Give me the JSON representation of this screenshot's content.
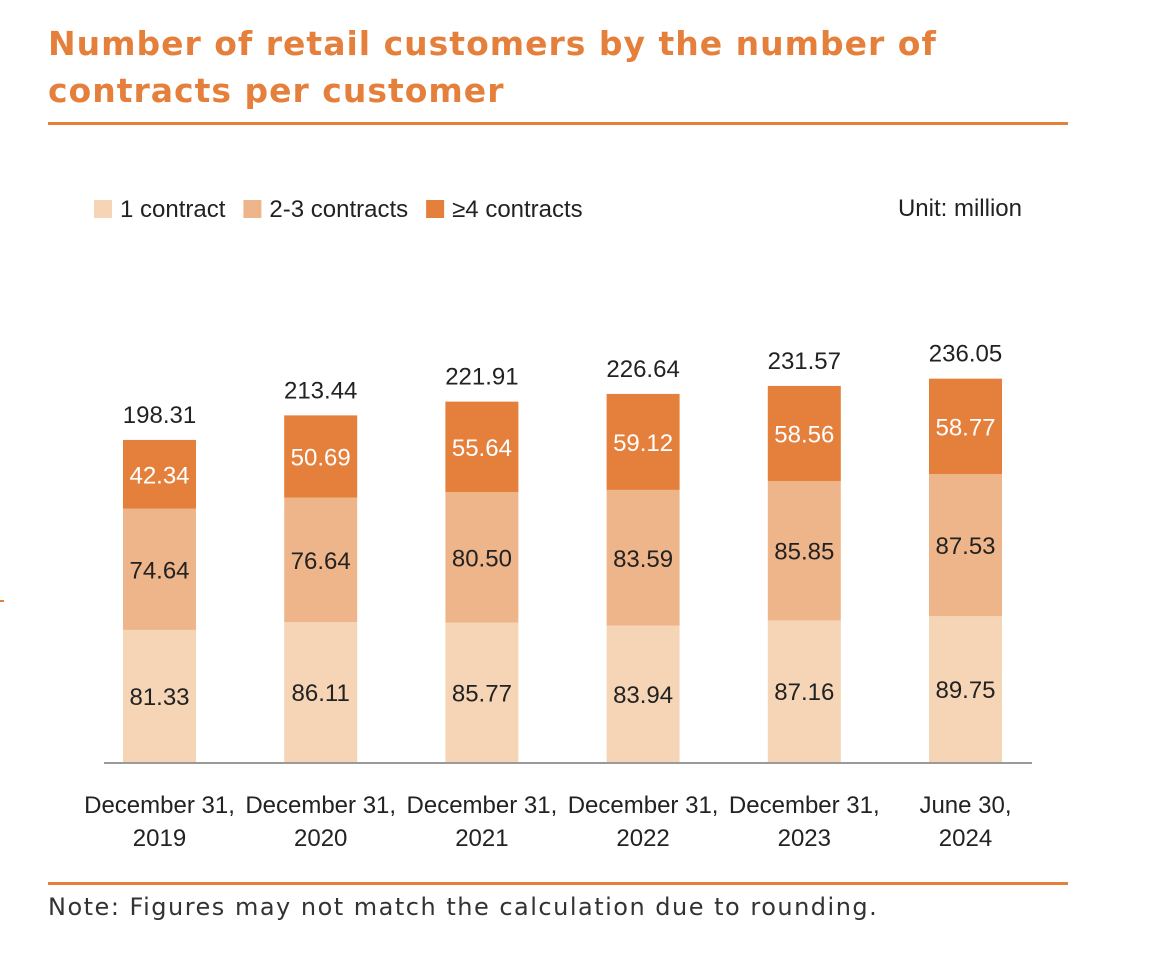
{
  "title": "Number of retail customers by the number of contracts per customer",
  "note": "Note: Figures may not match the calculation due to rounding.",
  "colors": {
    "accent": "#e5803c",
    "series_1": "#f6d5b7",
    "series_2": "#efb58a",
    "series_3": "#e5803c"
  },
  "chart_data": {
    "type": "bar",
    "stacked": true,
    "unit_label": "Unit: million",
    "legend_position": "top-left",
    "grid": false,
    "ylim": [
      0,
      250
    ],
    "categories": [
      [
        "December 31,",
        "2019"
      ],
      [
        "December 31,",
        "2020"
      ],
      [
        "December 31,",
        "2021"
      ],
      [
        "December 31,",
        "2022"
      ],
      [
        "December 31,",
        "2023"
      ],
      [
        "June 30,",
        "2024"
      ]
    ],
    "series": [
      {
        "name": "1 contract",
        "values": [
          81.33,
          86.11,
          85.77,
          83.94,
          87.16,
          89.75
        ]
      },
      {
        "name": "2-3 contracts",
        "values": [
          74.64,
          76.64,
          80.5,
          83.59,
          85.85,
          87.53
        ]
      },
      {
        "name": "≥4 contracts",
        "values": [
          42.34,
          50.69,
          55.64,
          59.12,
          58.56,
          58.77
        ]
      }
    ],
    "totals": [
      198.31,
      213.44,
      221.91,
      226.64,
      231.57,
      236.05
    ]
  }
}
